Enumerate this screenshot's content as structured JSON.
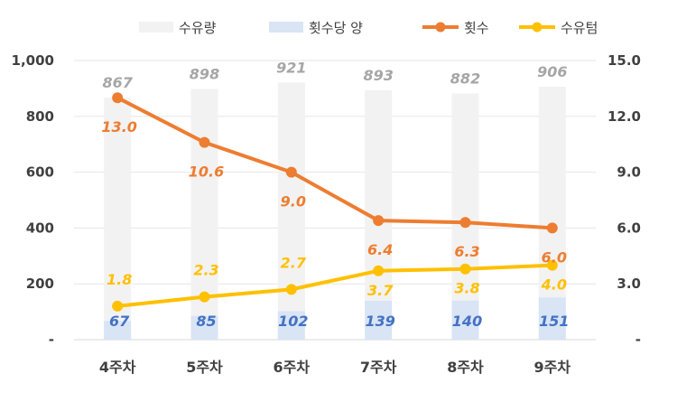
{
  "chart_data": {
    "type": "bar+line",
    "categories": [
      "4주차",
      "5주차",
      "6주차",
      "7주차",
      "8주차",
      "9주차"
    ],
    "legend": {
      "placement": "top",
      "items": [
        {
          "label": "수유량",
          "kind": "bar",
          "color": "#f2f2f2"
        },
        {
          "label": "횟수당 양",
          "kind": "bar",
          "color": "#d9e4f5"
        },
        {
          "label": "횟수",
          "kind": "line",
          "color": "#ed7d31"
        },
        {
          "label": "수유텀",
          "kind": "line",
          "color": "#ffc000"
        }
      ]
    },
    "y_left": {
      "range": [
        0,
        1000
      ],
      "ticks": [
        0,
        200,
        400,
        600,
        800,
        1000
      ],
      "tick_labels": [
        "-",
        "200",
        "400",
        "600",
        "800",
        "1,000"
      ]
    },
    "y_right": {
      "range": [
        0,
        15
      ],
      "ticks": [
        0,
        3,
        6,
        9,
        12,
        15
      ],
      "tick_labels": [
        "-",
        "3.0",
        "6.0",
        "9.0",
        "12.0",
        "15.0"
      ]
    },
    "bar_series": [
      {
        "name": "수유량",
        "axis": "left",
        "color": "#f2f2f2",
        "label_color": "#a6a6a6",
        "values": [
          867,
          898,
          921,
          893,
          882,
          906
        ],
        "labels": [
          "867",
          "898",
          "921",
          "893",
          "882",
          "906"
        ]
      },
      {
        "name": "횟수당 양",
        "axis": "left",
        "color": "#d9e4f5",
        "label_color": "#4472c4",
        "values": [
          67,
          85,
          102,
          139,
          140,
          151
        ],
        "labels": [
          "67",
          "85",
          "102",
          "139",
          "140",
          "151"
        ]
      }
    ],
    "line_series": [
      {
        "name": "횟수",
        "axis": "right",
        "color": "#ed7d31",
        "values": [
          13.0,
          10.6,
          9.0,
          6.4,
          6.3,
          6.0
        ],
        "labels": [
          "13.0",
          "10.6",
          "9.0",
          "6.4",
          "6.3",
          "6.0"
        ]
      },
      {
        "name": "수유텀",
        "axis": "right",
        "color": "#ffc000",
        "values": [
          1.8,
          2.3,
          2.7,
          3.7,
          3.8,
          4.0
        ],
        "labels": [
          "1.8",
          "2.3",
          "2.7",
          "3.7",
          "3.8",
          "4.0"
        ]
      }
    ],
    "grid": true
  }
}
